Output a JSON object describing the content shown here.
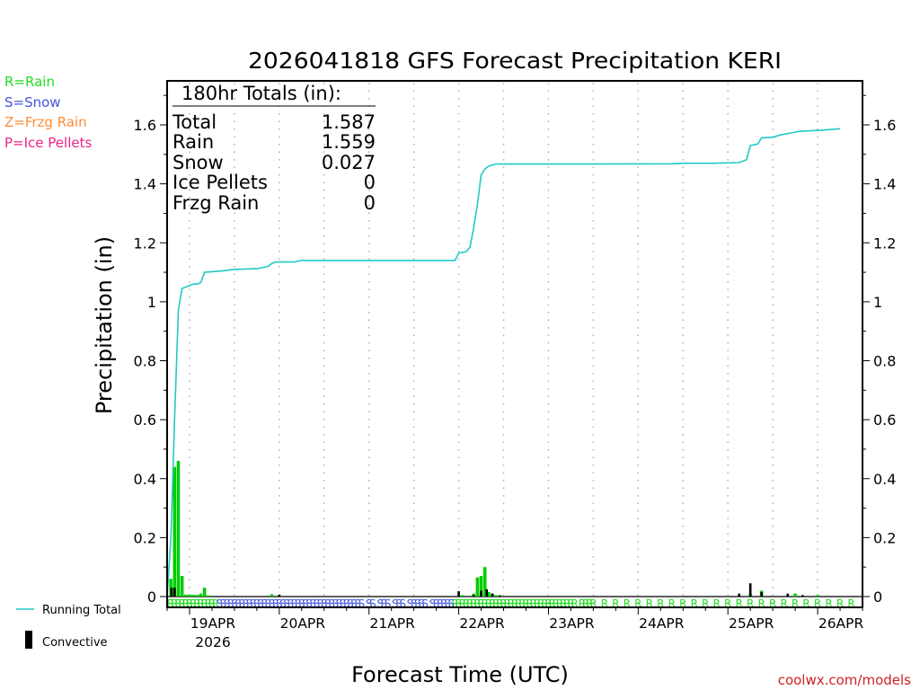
{
  "chart_data": {
    "type": "bar+line",
    "title": "2026041818 GFS Forecast Precipitation KERI",
    "xlabel": "Forecast Time (UTC)",
    "ylabel": "Precipitation (in)",
    "ylim": [
      0,
      1.75
    ],
    "yticks": [
      0,
      0.2,
      0.4,
      0.6,
      0.8,
      1,
      1.2,
      1.4,
      1.6
    ],
    "yticks_labels": [
      "0",
      "0.2",
      "0.4",
      "0.6",
      "0.8",
      "1",
      "1.2",
      "1.4",
      "1.6"
    ],
    "xlim_hours": [
      0,
      186
    ],
    "x_unit": "forecast hours from 2026-04-18 18Z",
    "xticks": [
      {
        "hour": 6,
        "label": "19APR",
        "sublabel": "2026"
      },
      {
        "hour": 30,
        "label": "20APR",
        "sublabel": ""
      },
      {
        "hour": 54,
        "label": "21APR",
        "sublabel": ""
      },
      {
        "hour": 78,
        "label": "22APR",
        "sublabel": ""
      },
      {
        "hour": 102,
        "label": "23APR",
        "sublabel": ""
      },
      {
        "hour": 126,
        "label": "24APR",
        "sublabel": ""
      },
      {
        "hour": 150,
        "label": "25APR",
        "sublabel": ""
      },
      {
        "hour": 174,
        "label": "26APR",
        "sublabel": ""
      }
    ],
    "grid": "vertical dotted at 00Z and 12Z",
    "totals_box": {
      "header": "180hr Totals (in):",
      "rows": [
        {
          "label": "Total",
          "value": "1.587"
        },
        {
          "label": "Rain",
          "value": "1.559"
        },
        {
          "label": "Snow",
          "value": "0.027"
        },
        {
          "label": "Ice Pellets",
          "value": "0"
        },
        {
          "label": "Frzg Rain",
          "value": "0"
        }
      ]
    },
    "type_legend": [
      {
        "text": "R=Rain",
        "color": "#22dd22"
      },
      {
        "text": "S=Snow",
        "color": "#4455dd"
      },
      {
        "text": "Z=Frzg Rain",
        "color": "#ff8c3a"
      },
      {
        "text": "P=Ice Pellets",
        "color": "#ee2288"
      }
    ],
    "line_legend": {
      "running_total": "Running Total",
      "convective": "Convective"
    },
    "running_total": {
      "name": "Running Total",
      "color": "#22c8c8",
      "points": [
        [
          0,
          0
        ],
        [
          1,
          0.2
        ],
        [
          2,
          0.6
        ],
        [
          3,
          0.97
        ],
        [
          4,
          1.045
        ],
        [
          5,
          1.05
        ],
        [
          6,
          1.055
        ],
        [
          7,
          1.06
        ],
        [
          8,
          1.06
        ],
        [
          9,
          1.065
        ],
        [
          10,
          1.1
        ],
        [
          12,
          1.102
        ],
        [
          15,
          1.105
        ],
        [
          18,
          1.11
        ],
        [
          24,
          1.112
        ],
        [
          27,
          1.12
        ],
        [
          28,
          1.13
        ],
        [
          29,
          1.135
        ],
        [
          34,
          1.135
        ],
        [
          36,
          1.14
        ],
        [
          48,
          1.14
        ],
        [
          77,
          1.14
        ],
        [
          78,
          1.165
        ],
        [
          80,
          1.17
        ],
        [
          81,
          1.185
        ],
        [
          82,
          1.25
        ],
        [
          83,
          1.33
        ],
        [
          84,
          1.43
        ],
        [
          85,
          1.45
        ],
        [
          86,
          1.46
        ],
        [
          88,
          1.467
        ],
        [
          100,
          1.467
        ],
        [
          135,
          1.468
        ],
        [
          138,
          1.47
        ],
        [
          146,
          1.47
        ],
        [
          153,
          1.472
        ],
        [
          155,
          1.482
        ],
        [
          156,
          1.53
        ],
        [
          158,
          1.535
        ],
        [
          159,
          1.556
        ],
        [
          162,
          1.558
        ],
        [
          164,
          1.566
        ],
        [
          167,
          1.573
        ],
        [
          169,
          1.578
        ],
        [
          175,
          1.582
        ],
        [
          180,
          1.587
        ]
      ]
    },
    "precip_bars": {
      "name": "Rain",
      "color": "#00cc00",
      "bar_hours": 1,
      "bars": [
        [
          1,
          0.06
        ],
        [
          2,
          0.44
        ],
        [
          3,
          0.46
        ],
        [
          4,
          0.07
        ],
        [
          5,
          0.007
        ],
        [
          6,
          0.007
        ],
        [
          7,
          0.006
        ],
        [
          8,
          0.006
        ],
        [
          9,
          0.01
        ],
        [
          10,
          0.03
        ],
        [
          11,
          0.004
        ],
        [
          28,
          0.008
        ],
        [
          30,
          0.005
        ],
        [
          79,
          0.005
        ],
        [
          82,
          0.01
        ],
        [
          83,
          0.065
        ],
        [
          84,
          0.07
        ],
        [
          85,
          0.1
        ],
        [
          86,
          0.015
        ],
        [
          87,
          0.01
        ],
        [
          88,
          0.005
        ],
        [
          89,
          0.004
        ],
        [
          156,
          0.01
        ],
        [
          159,
          0.02
        ],
        [
          168,
          0.01
        ],
        [
          174,
          0.005
        ]
      ]
    },
    "convective_bars": {
      "name": "Convective",
      "color": "#000000",
      "bars": [
        [
          1.2,
          0.03
        ],
        [
          2,
          0.03
        ],
        [
          30,
          0.006
        ],
        [
          78,
          0.018
        ],
        [
          82,
          0.005
        ],
        [
          84,
          0.02
        ],
        [
          85.5,
          0.025
        ],
        [
          87,
          0.01
        ],
        [
          89,
          0.004
        ],
        [
          153,
          0.01
        ],
        [
          156,
          0.045
        ],
        [
          159,
          0.015
        ],
        [
          166,
          0.01
        ],
        [
          170,
          0.005
        ]
      ]
    },
    "ptype_markers": [
      {
        "code": "R",
        "color": "#22dd22",
        "hours": [
          1,
          2,
          3,
          4,
          5,
          6,
          7,
          8,
          9,
          10,
          11,
          12,
          13,
          77,
          78,
          79,
          80,
          81,
          82,
          83,
          84,
          85,
          86,
          87,
          88,
          89,
          90,
          91,
          92,
          93,
          94,
          95,
          96,
          97,
          98,
          99,
          100,
          101,
          102,
          103,
          104,
          105,
          106,
          107,
          108,
          109,
          111,
          112,
          113,
          114,
          117,
          120,
          123,
          126,
          129,
          132,
          135,
          138,
          141,
          144,
          147,
          150,
          153,
          156,
          159,
          162,
          165,
          168,
          171,
          174,
          177,
          180,
          183
        ]
      },
      {
        "code": "S",
        "color": "#4455dd",
        "hours": [
          14,
          15,
          16,
          17,
          18,
          19,
          20,
          21,
          22,
          23,
          24,
          25,
          26,
          27,
          28,
          29,
          30,
          31,
          32,
          33,
          34,
          35,
          36,
          37,
          38,
          39,
          40,
          41,
          42,
          43,
          44,
          45,
          46,
          47,
          48,
          49,
          50,
          51,
          52,
          54,
          55,
          57,
          58,
          59,
          61,
          62,
          63,
          65,
          66,
          67,
          68,
          69,
          71,
          72,
          73,
          74,
          75,
          76
        ]
      }
    ],
    "footer": "coolwx.com/models"
  }
}
